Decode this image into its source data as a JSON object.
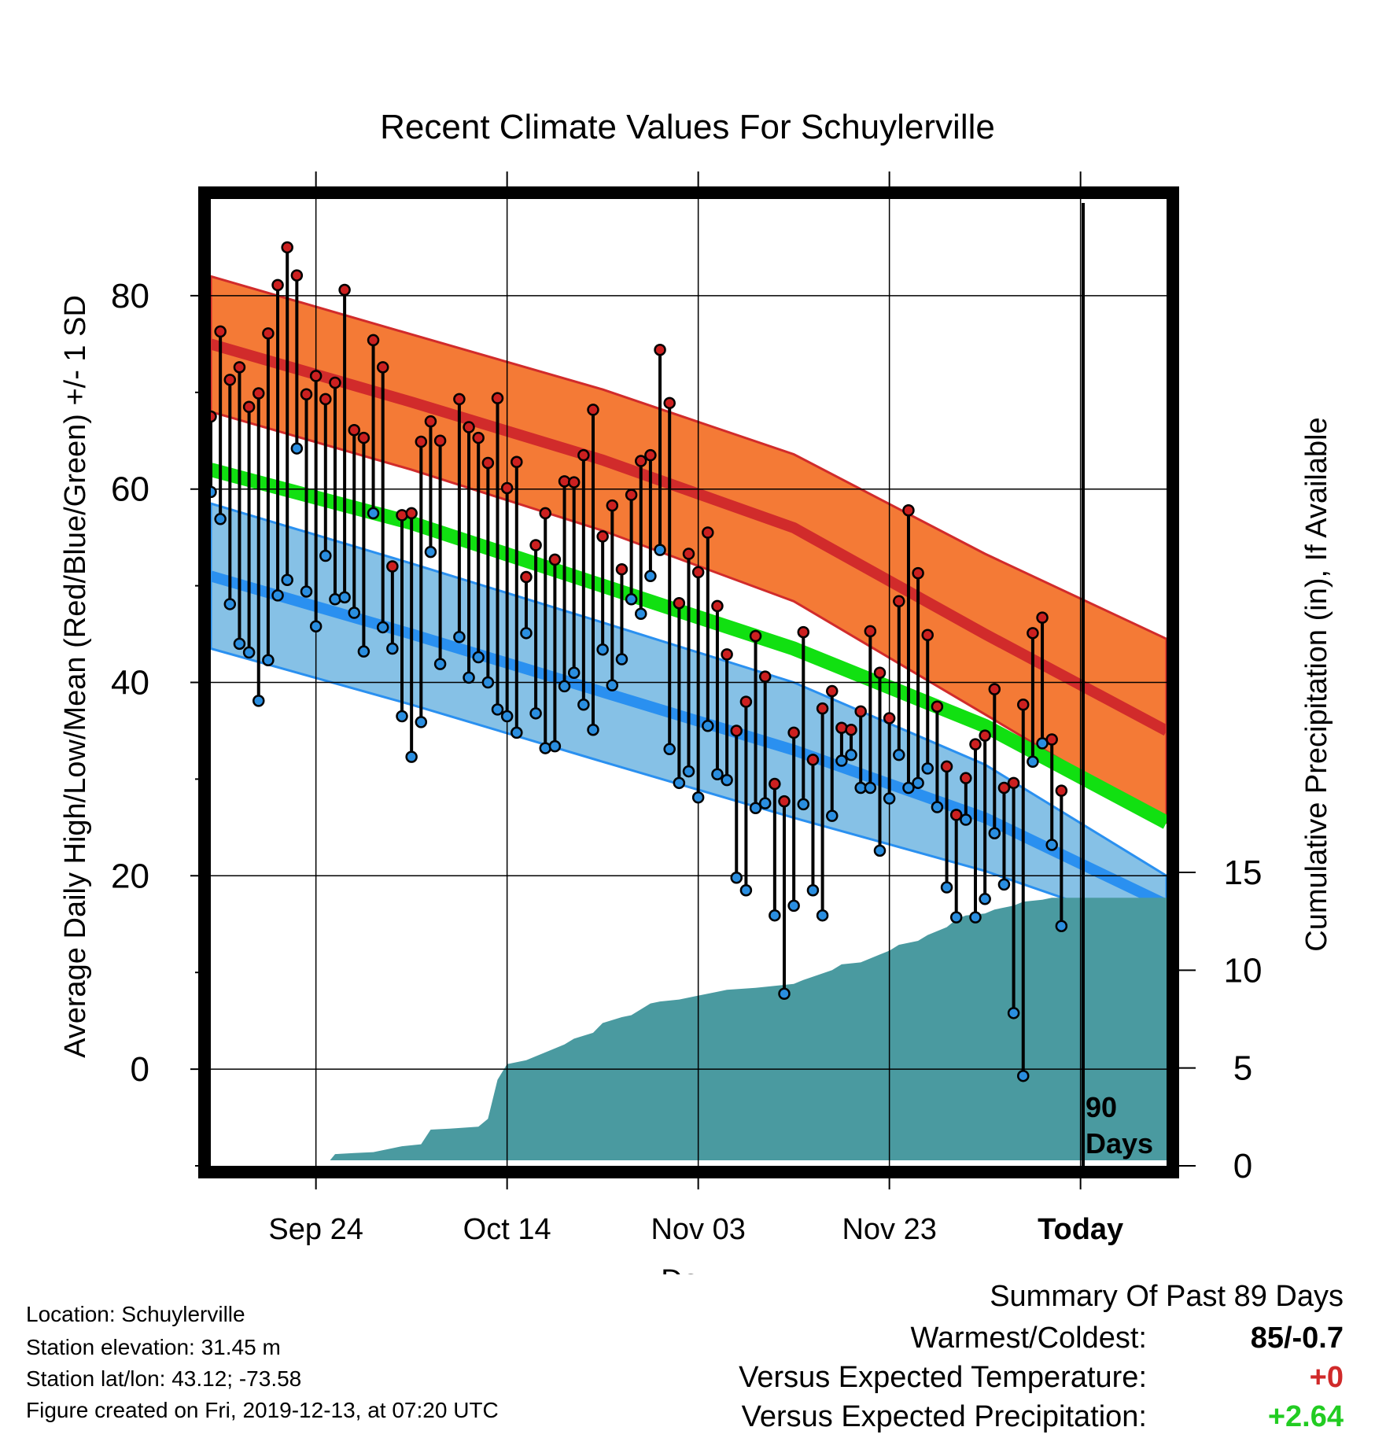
{
  "chart_data": {
    "type": "line",
    "title": "Recent Climate Values For Schuylerville",
    "xlabel": "Day",
    "ylabel": "Average Daily High/Low/Mean (Red/Blue/Green) +/- 1 SD",
    "y2label": "Cumulative Precipitation (in), If Available",
    "x_tick_labels": [
      "Sep 24",
      "Oct 14",
      "Nov 03",
      "Nov 23",
      "Today"
    ],
    "x_tick_days": [
      -80,
      -60,
      -40,
      -20,
      0
    ],
    "xlim": [
      -91,
      9
    ],
    "ylim": [
      -10,
      90
    ],
    "y_ticks": [
      0,
      20,
      40,
      60,
      80
    ],
    "y2lim": [
      0,
      15
    ],
    "y2_ticks": [
      0,
      5,
      10,
      15
    ],
    "grid": true,
    "today_marker": "90\nDays",
    "colors": {
      "high_band": "#f47a36",
      "high_mean": "#d12b2b",
      "low_band": "#86c1e6",
      "low_mean": "#2a90f0",
      "mean": "#11e011",
      "overlap": "#8b1a1a",
      "precip": "#4a9aa0",
      "high_dot": "#cc2020",
      "low_dot": "#2a8ee0"
    },
    "normals": {
      "x": [
        -91,
        -70,
        -50,
        -30,
        -10,
        9
      ],
      "high_mean": [
        75,
        69,
        63,
        56,
        45,
        35
      ],
      "high_sd": [
        7,
        7,
        7.3,
        7.6,
        8.3,
        9.5
      ],
      "low_mean": [
        51,
        45,
        39,
        33,
        26,
        17
      ],
      "low_sd": [
        7.5,
        7.3,
        7.2,
        7,
        5.5,
        3
      ],
      "mean": [
        62,
        56.5,
        50,
        43.5,
        35.5,
        25.5
      ]
    },
    "observed": {
      "start_day": -91,
      "high": [
        67.5,
        76.3,
        71.3,
        72.6,
        68.5,
        69.9,
        76.1,
        81.1,
        85,
        82.1,
        69.8,
        71.7,
        69.3,
        71,
        80.6,
        66.1,
        65.3,
        75.4,
        72.6,
        52,
        57.3,
        57.5,
        64.9,
        67,
        65,
        null,
        69.3,
        66.4,
        65.3,
        62.7,
        69.4,
        60.1,
        62.8,
        50.9,
        54.2,
        57.5,
        52.7,
        60.8,
        60.7,
        63.5,
        68.2,
        55.1,
        58.3,
        51.7,
        59.4,
        62.9,
        63.5,
        74.4,
        68.9,
        48.2,
        53.3,
        51.4,
        55.5,
        47.9,
        42.9,
        35,
        38,
        44.8,
        40.6,
        29.5,
        27.7,
        34.8,
        45.2,
        32,
        37.3,
        39.1,
        35.3,
        35.1,
        37,
        45.3,
        41,
        36.3,
        48.4,
        57.8,
        51.3,
        44.9,
        37.5,
        31.3,
        26.3,
        30.1,
        33.6,
        34.5,
        39.3,
        29.1,
        29.6,
        37.7,
        45.1,
        46.7,
        34.1,
        28.8
      ],
      "low": [
        59.7,
        56.9,
        48.1,
        44,
        43.1,
        38.1,
        42.3,
        49,
        50.6,
        64.2,
        49.4,
        45.8,
        53.1,
        48.6,
        48.8,
        47.2,
        43.2,
        57.5,
        45.7,
        43.5,
        36.5,
        32.3,
        35.9,
        53.5,
        41.9,
        null,
        44.7,
        40.5,
        42.6,
        40,
        37.2,
        36.5,
        34.8,
        45.1,
        36.8,
        33.2,
        33.4,
        39.6,
        41,
        37.7,
        35.1,
        43.4,
        39.7,
        42.4,
        48.6,
        47.1,
        51,
        53.7,
        33.1,
        29.6,
        30.8,
        28.1,
        35.5,
        30.5,
        29.9,
        19.8,
        18.5,
        27,
        27.5,
        15.9,
        7.8,
        16.9,
        27.4,
        18.5,
        15.9,
        26.2,
        31.9,
        32.5,
        29.1,
        29.1,
        22.6,
        28,
        32.5,
        29.1,
        29.6,
        31.1,
        27.1,
        18.8,
        15.7,
        25.8,
        15.7,
        17.6,
        24.4,
        19.1,
        5.8,
        -0.7,
        31.8,
        33.7,
        23.2,
        14.8
      ]
    },
    "precipitation": {
      "x": [
        -91,
        -79,
        -78,
        -76,
        -74,
        -72,
        -71,
        -69,
        -68,
        -66,
        -63,
        -62,
        -61,
        -60,
        -58,
        -57,
        -56,
        -54,
        -53,
        -51,
        -50,
        -48,
        -47,
        -45,
        -44,
        -42,
        -41,
        -38,
        -37,
        -34,
        -32,
        -30,
        -29,
        -26,
        -25,
        -23,
        -21,
        -20,
        -19,
        -17,
        -16,
        -14,
        -13,
        -12,
        -10,
        -9,
        -7,
        -6,
        -4,
        -3,
        -1,
        0,
        9
      ],
      "values": [
        0,
        0,
        0.6,
        0.65,
        0.7,
        0.9,
        1.0,
        1.1,
        1.85,
        1.9,
        2.0,
        2.4,
        4.4,
        5.2,
        5.4,
        5.6,
        5.8,
        6.2,
        6.5,
        6.8,
        7.3,
        7.6,
        7.7,
        8.3,
        8.4,
        8.5,
        8.6,
        8.9,
        9.0,
        9.1,
        9.2,
        9.3,
        9.5,
        10.0,
        10.3,
        10.4,
        10.8,
        11.0,
        11.3,
        11.5,
        11.8,
        12.2,
        12.6,
        12.8,
        12.9,
        13.1,
        13.3,
        13.5,
        13.6,
        13.7,
        13.7,
        13.7,
        13.7
      ]
    }
  },
  "info": {
    "location": "Location: Schuylerville",
    "elevation": "Station elevation: 31.45 m",
    "latlon": "Station lat/lon: 43.12; -73.58",
    "created": "Figure created on Fri, 2019-12-13, at 07:20 UTC"
  },
  "summary": {
    "title": "Summary Of Past 89 Days",
    "warmest_label": "Warmest/Coldest:",
    "warmest_value": "85/-0.7",
    "temp_label": "Versus Expected Temperature:",
    "temp_value": "+0",
    "temp_color": "#d02a2a",
    "precip_label": "Versus Expected Precipitation:",
    "precip_value": "+2.64",
    "precip_color": "#22cc22"
  }
}
